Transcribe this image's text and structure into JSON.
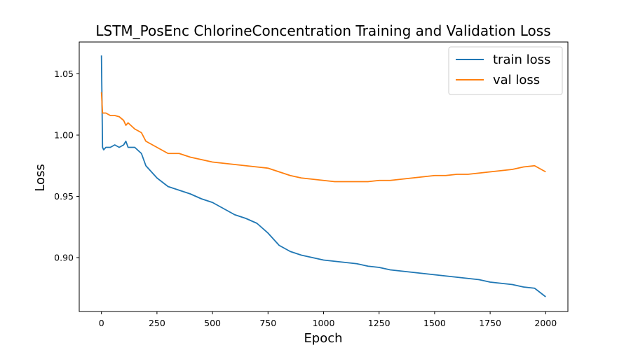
{
  "chart_data": {
    "type": "line",
    "title": "LSTM_PosEnc ChlorineConcentration Training and Validation Loss",
    "xlabel": "Epoch",
    "ylabel": "Loss",
    "xlim": [
      -100,
      2100
    ],
    "ylim": [
      0.856,
      1.076
    ],
    "xticks": [
      0,
      250,
      500,
      750,
      1000,
      1250,
      1500,
      1750,
      2000
    ],
    "yticks": [
      0.9,
      0.95,
      1.0,
      1.05
    ],
    "ytick_labels": [
      "0.90",
      "0.95",
      "1.00",
      "1.05"
    ],
    "grid": false,
    "legend": "top-right",
    "series": [
      {
        "name": "train loss",
        "color": "#1f77b4",
        "x": [
          0,
          5,
          10,
          20,
          40,
          60,
          80,
          100,
          110,
          120,
          150,
          180,
          200,
          250,
          300,
          350,
          400,
          450,
          500,
          550,
          600,
          650,
          700,
          750,
          800,
          850,
          900,
          950,
          1000,
          1050,
          1100,
          1150,
          1200,
          1250,
          1300,
          1350,
          1400,
          1450,
          1500,
          1550,
          1600,
          1650,
          1700,
          1750,
          1800,
          1850,
          1900,
          1950,
          2000
        ],
        "y": [
          1.065,
          0.99,
          0.988,
          0.99,
          0.99,
          0.992,
          0.99,
          0.992,
          0.995,
          0.99,
          0.99,
          0.985,
          0.975,
          0.965,
          0.958,
          0.955,
          0.952,
          0.948,
          0.945,
          0.94,
          0.935,
          0.932,
          0.928,
          0.92,
          0.91,
          0.905,
          0.902,
          0.9,
          0.898,
          0.897,
          0.896,
          0.895,
          0.893,
          0.892,
          0.89,
          0.889,
          0.888,
          0.887,
          0.886,
          0.885,
          0.884,
          0.883,
          0.882,
          0.88,
          0.879,
          0.878,
          0.876,
          0.875,
          0.868
        ]
      },
      {
        "name": "val loss",
        "color": "#ff7f0e",
        "x": [
          0,
          5,
          20,
          40,
          60,
          80,
          100,
          110,
          120,
          150,
          180,
          200,
          250,
          300,
          350,
          400,
          450,
          500,
          550,
          600,
          650,
          700,
          750,
          800,
          850,
          900,
          950,
          1000,
          1050,
          1100,
          1150,
          1200,
          1250,
          1300,
          1350,
          1400,
          1450,
          1500,
          1550,
          1600,
          1650,
          1700,
          1750,
          1800,
          1850,
          1900,
          1950,
          2000
        ],
        "y": [
          1.035,
          1.018,
          1.018,
          1.016,
          1.016,
          1.015,
          1.012,
          1.008,
          1.01,
          1.005,
          1.002,
          0.995,
          0.99,
          0.985,
          0.985,
          0.982,
          0.98,
          0.978,
          0.977,
          0.976,
          0.975,
          0.974,
          0.973,
          0.97,
          0.967,
          0.965,
          0.964,
          0.963,
          0.962,
          0.962,
          0.962,
          0.962,
          0.963,
          0.963,
          0.964,
          0.965,
          0.966,
          0.967,
          0.967,
          0.968,
          0.968,
          0.969,
          0.97,
          0.971,
          0.972,
          0.974,
          0.975,
          0.97
        ]
      }
    ]
  }
}
